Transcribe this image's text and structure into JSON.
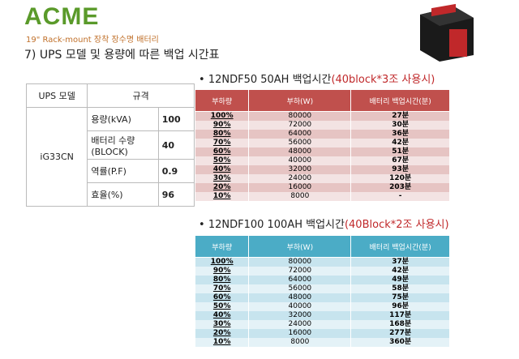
{
  "header": {
    "logo": "ACME",
    "subtitle": "19\" Rack-mount 장착 장수명 배터리",
    "title": "7) UPS 모델 및 용량에 따른 백업 시간표"
  },
  "spec_table": {
    "headers": [
      "UPS 모델",
      "규격"
    ],
    "model": "iG33CN",
    "rows": [
      [
        "용량(kVA)",
        "100"
      ],
      [
        "배터리 수량\n(BLOCK)",
        "40"
      ],
      [
        "역률(P.F)",
        "0.9"
      ],
      [
        "효율(%)",
        "96"
      ]
    ]
  },
  "backup_tables": [
    {
      "title": "12NDF50 50AH 백업시간",
      "note": "(40block*3조 사용시)",
      "headers": [
        "부하량",
        "부하(W)",
        "배터리 백업시간(분)"
      ],
      "rows": [
        [
          "100%",
          "80000",
          "27분"
        ],
        [
          "90%",
          "72000",
          "30분"
        ],
        [
          "80%",
          "64000",
          "36분"
        ],
        [
          "70%",
          "56000",
          "42분"
        ],
        [
          "60%",
          "48000",
          "51분"
        ],
        [
          "50%",
          "40000",
          "67분"
        ],
        [
          "40%",
          "32000",
          "93분"
        ],
        [
          "30%",
          "24000",
          "120분"
        ],
        [
          "20%",
          "16000",
          "203분"
        ],
        [
          "10%",
          "8000",
          "-"
        ]
      ]
    },
    {
      "title": "12NDF100 100AH 백업시간",
      "note": "(40Block*2조 사용시)",
      "headers": [
        "부하량",
        "부하(W)",
        "배터리 백업시간(분)"
      ],
      "rows": [
        [
          "100%",
          "80000",
          "37분"
        ],
        [
          "90%",
          "72000",
          "42분"
        ],
        [
          "80%",
          "64000",
          "49분"
        ],
        [
          "70%",
          "56000",
          "58분"
        ],
        [
          "60%",
          "48000",
          "75분"
        ],
        [
          "50%",
          "40000",
          "96분"
        ],
        [
          "40%",
          "32000",
          "117분"
        ],
        [
          "30%",
          "24000",
          "168분"
        ],
        [
          "20%",
          "16000",
          "277분"
        ],
        [
          "10%",
          "8000",
          "360분"
        ]
      ]
    }
  ]
}
